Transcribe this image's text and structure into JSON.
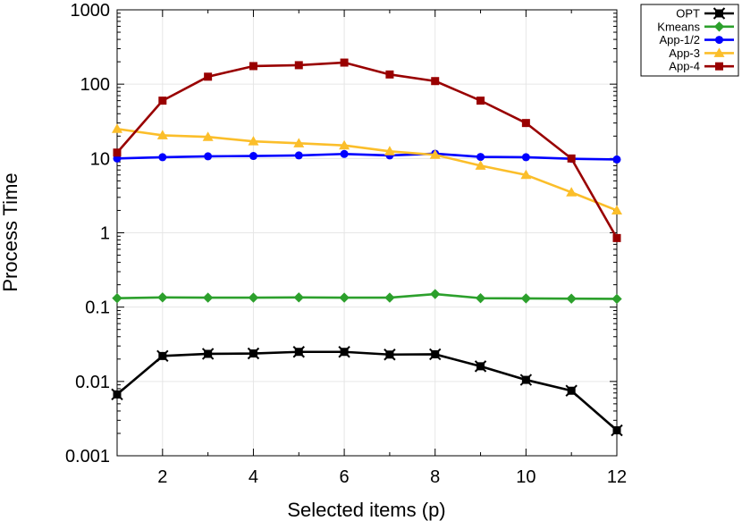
{
  "chart_data": {
    "type": "line",
    "title": "",
    "xlabel": "Selected items (p)",
    "ylabel": "Process Time",
    "xlim": [
      1,
      12
    ],
    "ylim": [
      0.001,
      1000
    ],
    "yscale": "log",
    "grid": true,
    "legend_position": "top-right outside",
    "x_ticks": [
      2,
      4,
      6,
      8,
      10,
      12
    ],
    "x_tick_labels": [
      "2",
      "4",
      "6",
      "8",
      "10",
      "12"
    ],
    "y_ticks": [
      0.001,
      0.01,
      0.1,
      1,
      10,
      100,
      1000
    ],
    "y_tick_labels": [
      "0.001",
      "0.01",
      "0.1",
      "1",
      "10",
      "100",
      "1000"
    ],
    "x": [
      1,
      2,
      3,
      4,
      5,
      6,
      7,
      8,
      9,
      10,
      11,
      12
    ],
    "series": [
      {
        "name": "OPT",
        "color": "#000000",
        "marker": "x-square",
        "values": [
          0.0067,
          0.022,
          0.0235,
          0.0238,
          0.025,
          0.025,
          0.023,
          0.0232,
          0.016,
          0.0105,
          0.0075,
          0.0022
        ]
      },
      {
        "name": "Kmeans",
        "color": "#2ca02c",
        "marker": "diamond",
        "values": [
          0.132,
          0.135,
          0.134,
          0.134,
          0.135,
          0.134,
          0.134,
          0.15,
          0.132,
          0.131,
          0.13,
          0.129
        ]
      },
      {
        "name": "App-1/2",
        "color": "#0000ff",
        "marker": "circle",
        "values": [
          10.0,
          10.4,
          10.7,
          10.8,
          11.0,
          11.5,
          11.0,
          11.6,
          10.5,
          10.4,
          9.9,
          9.7
        ]
      },
      {
        "name": "App-3",
        "color": "#fbbe2a",
        "marker": "triangle",
        "values": [
          25.0,
          20.5,
          19.5,
          17.0,
          16.0,
          15.0,
          12.5,
          11.2,
          8.0,
          6.0,
          3.5,
          2.0
        ]
      },
      {
        "name": "App-4",
        "color": "#990000",
        "marker": "square",
        "values": [
          12.0,
          60.0,
          126.0,
          175.0,
          180.0,
          195.0,
          135.0,
          110.0,
          60.0,
          30.0,
          10.0,
          0.85
        ]
      }
    ]
  }
}
